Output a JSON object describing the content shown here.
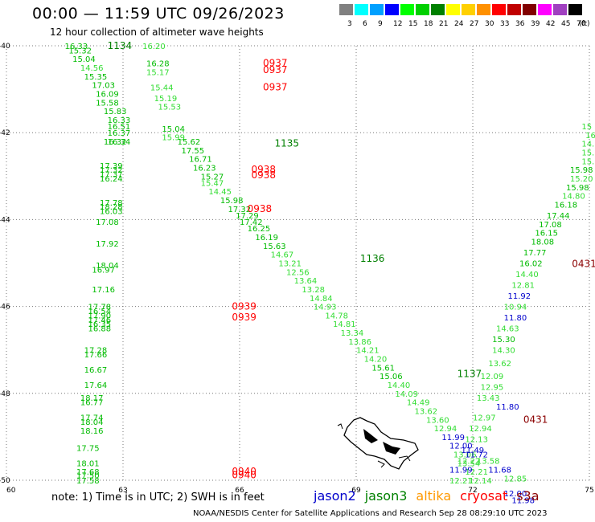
{
  "header": {
    "title": "00:00 — 11:59 UTC 09/26/2023",
    "subtitle": "12 hour collection of altimeter wave heights"
  },
  "legend": {
    "unit": "(ft)",
    "bins": [
      {
        "label": "3",
        "color": "#808080"
      },
      {
        "label": "6",
        "color": "#00ffff"
      },
      {
        "label": "9",
        "color": "#00a0ff"
      },
      {
        "label": "12",
        "color": "#0000ff"
      },
      {
        "label": "15",
        "color": "#00ff00"
      },
      {
        "label": "18",
        "color": "#00d000"
      },
      {
        "label": "21",
        "color": "#008000"
      },
      {
        "label": "24",
        "color": "#ffff00"
      },
      {
        "label": "27",
        "color": "#ffd000"
      },
      {
        "label": "30",
        "color": "#ff9000"
      },
      {
        "label": "33",
        "color": "#ff0000"
      },
      {
        "label": "36",
        "color": "#c00000"
      },
      {
        "label": "39",
        "color": "#800000"
      },
      {
        "label": "42",
        "color": "#ff00ff"
      },
      {
        "label": "45",
        "color": "#a040c0"
      },
      {
        "label": "70",
        "color": "#000000"
      }
    ]
  },
  "axes": {
    "lat_labels": [
      {
        "label": "-40",
        "lat": -40
      },
      {
        "label": "-42",
        "lat": -42
      },
      {
        "label": "-44",
        "lat": -44
      },
      {
        "label": "-46",
        "lat": -46
      },
      {
        "label": "-48",
        "lat": -48
      },
      {
        "label": "-50",
        "lat": -50
      }
    ],
    "lon_labels": [
      {
        "label": "60",
        "lon": 60
      },
      {
        "label": "63",
        "lon": 63
      },
      {
        "label": "66",
        "lon": 66
      },
      {
        "label": "69",
        "lon": 69
      },
      {
        "label": "72",
        "lon": 72
      },
      {
        "label": "75",
        "lon": 75
      }
    ]
  },
  "colors": {
    "light_green": "#33dd33",
    "green": "#00bb00",
    "dark_green": "#008000",
    "blue": "#0000cc",
    "red": "#ff0000",
    "dark_red": "#8b0000"
  },
  "times": [
    {
      "label": "1134",
      "lon": 62.6,
      "lat": -40.0,
      "color": "dark_green"
    },
    {
      "label": "0937",
      "lon": 66.6,
      "lat": -40.4,
      "color": "red"
    },
    {
      "label": "0937",
      "lon": 66.6,
      "lat": -40.55,
      "color": "red"
    },
    {
      "label": "0937",
      "lon": 66.6,
      "lat": -40.95,
      "color": "red"
    },
    {
      "label": "1135",
      "lon": 66.9,
      "lat": -42.25,
      "color": "dark_green"
    },
    {
      "label": "0938",
      "lon": 66.3,
      "lat": -42.85,
      "color": "red"
    },
    {
      "label": "0938",
      "lon": 66.3,
      "lat": -42.98,
      "color": "red"
    },
    {
      "label": "0938",
      "lon": 66.2,
      "lat": -43.75,
      "color": "red"
    },
    {
      "label": "1136",
      "lon": 69.1,
      "lat": -44.9,
      "color": "dark_green"
    },
    {
      "label": "0939",
      "lon": 65.8,
      "lat": -46.0,
      "color": "red"
    },
    {
      "label": "0939",
      "lon": 65.8,
      "lat": -46.25,
      "color": "red"
    },
    {
      "label": "1137",
      "lon": 71.6,
      "lat": -47.55,
      "color": "dark_green"
    },
    {
      "label": "0431",
      "lon": 73.3,
      "lat": -48.6,
      "color": "dark_red"
    },
    {
      "label": "0431",
      "lon": 74.55,
      "lat": -45.02,
      "color": "dark_red"
    },
    {
      "label": "0940",
      "lon": 65.8,
      "lat": -49.8,
      "color": "red"
    },
    {
      "label": "0940",
      "lon": 65.8,
      "lat": -49.88,
      "color": "red"
    }
  ],
  "tracks": [
    {
      "id": "jason3-track-a",
      "color": "green",
      "points": [
        {
          "lon": 61.5,
          "lat": -40.0,
          "v": "16.33"
        },
        {
          "lon": 61.6,
          "lat": -40.1,
          "v": "15.32"
        },
        {
          "lon": 61.7,
          "lat": -40.3,
          "v": "15.04"
        },
        {
          "lon": 61.9,
          "lat": -40.5,
          "v": "14.56",
          "c": "light_green"
        },
        {
          "lon": 62.0,
          "lat": -40.7,
          "v": "15.35"
        },
        {
          "lon": 62.2,
          "lat": -40.9,
          "v": "17.03"
        },
        {
          "lon": 62.3,
          "lat": -41.1,
          "v": "16.09"
        },
        {
          "lon": 62.3,
          "lat": -41.3,
          "v": "15.58"
        },
        {
          "lon": 62.5,
          "lat": -41.5,
          "v": "15.83"
        },
        {
          "lon": 62.6,
          "lat": -41.7,
          "v": "16.33"
        },
        {
          "lon": 62.6,
          "lat": -41.85,
          "v": "16.51"
        },
        {
          "lon": 62.6,
          "lat": -42.0,
          "v": "16.37"
        },
        {
          "lon": 62.6,
          "lat": -42.2,
          "v": "16.34"
        },
        {
          "lon": 62.5,
          "lat": -42.2,
          "v": "16.32"
        }
      ]
    },
    {
      "id": "altika-track",
      "color": "light_green",
      "points": [
        {
          "lon": 63.5,
          "lat": -40.0,
          "v": "16.20"
        },
        {
          "lon": 63.6,
          "lat": -40.4,
          "v": "16.28",
          "c": "green"
        },
        {
          "lon": 63.6,
          "lat": -40.6,
          "v": "15.17"
        },
        {
          "lon": 63.7,
          "lat": -40.95,
          "v": "15.44"
        },
        {
          "lon": 63.8,
          "lat": -41.2,
          "v": "15.19"
        },
        {
          "lon": 63.9,
          "lat": -41.4,
          "v": "15.53"
        },
        {
          "lon": 64.0,
          "lat": -41.9,
          "v": "15.04",
          "c": "green"
        },
        {
          "lon": 64.0,
          "lat": -42.1,
          "v": "15.99"
        },
        {
          "lon": 64.4,
          "lat": -42.2,
          "v": "15.62",
          "c": "green"
        },
        {
          "lon": 64.5,
          "lat": -42.4,
          "v": "17.55",
          "c": "green"
        },
        {
          "lon": 64.7,
          "lat": -42.6,
          "v": "16.71",
          "c": "green"
        },
        {
          "lon": 64.8,
          "lat": -42.8,
          "v": "16.23",
          "c": "green"
        },
        {
          "lon": 65.0,
          "lat": -43.0,
          "v": "15.27",
          "c": "green"
        },
        {
          "lon": 65.0,
          "lat": -43.15,
          "v": "15.47"
        },
        {
          "lon": 65.2,
          "lat": -43.35,
          "v": "14.45"
        },
        {
          "lon": 65.5,
          "lat": -43.55,
          "v": "15.98",
          "c": "green"
        },
        {
          "lon": 65.7,
          "lat": -43.75,
          "v": "17.32",
          "c": "green"
        },
        {
          "lon": 65.9,
          "lat": -43.9,
          "v": "17.29",
          "c": "green"
        },
        {
          "lon": 66.0,
          "lat": -44.05,
          "v": "17.42",
          "c": "green"
        },
        {
          "lon": 66.2,
          "lat": -44.2,
          "v": "16.25",
          "c": "green"
        },
        {
          "lon": 66.4,
          "lat": -44.4,
          "v": "16.19",
          "c": "green"
        },
        {
          "lon": 66.6,
          "lat": -44.6,
          "v": "15.63",
          "c": "green"
        },
        {
          "lon": 66.8,
          "lat": -44.8,
          "v": "14.67"
        },
        {
          "lon": 67.0,
          "lat": -45.0,
          "v": "13.21"
        },
        {
          "lon": 67.2,
          "lat": -45.2,
          "v": "12.56"
        },
        {
          "lon": 67.4,
          "lat": -45.4,
          "v": "13.64"
        },
        {
          "lon": 67.6,
          "lat": -45.6,
          "v": "13.28"
        },
        {
          "lon": 67.8,
          "lat": -45.8,
          "v": "14.84"
        },
        {
          "lon": 67.9,
          "lat": -46.0,
          "v": "14.93"
        },
        {
          "lon": 68.2,
          "lat": -46.2,
          "v": "14.78"
        },
        {
          "lon": 68.4,
          "lat": -46.4,
          "v": "14.81"
        },
        {
          "lon": 68.6,
          "lat": -46.6,
          "v": "13.34"
        },
        {
          "lon": 68.8,
          "lat": -46.8,
          "v": "13.86"
        },
        {
          "lon": 69.0,
          "lat": -47.0,
          "v": "14.21"
        },
        {
          "lon": 69.2,
          "lat": -47.2,
          "v": "14.20"
        },
        {
          "lon": 69.4,
          "lat": -47.4,
          "v": "15.61",
          "c": "green"
        },
        {
          "lon": 69.6,
          "lat": -47.6,
          "v": "15.06",
          "c": "green"
        },
        {
          "lon": 69.8,
          "lat": -47.8,
          "v": "14.40"
        },
        {
          "lon": 70.0,
          "lat": -48.0,
          "v": "14.09"
        },
        {
          "lon": 70.3,
          "lat": -48.2,
          "v": "14.49"
        },
        {
          "lon": 70.5,
          "lat": -48.4,
          "v": "13.62"
        },
        {
          "lon": 70.8,
          "lat": -48.6,
          "v": "13.60"
        },
        {
          "lon": 71.0,
          "lat": -48.8,
          "v": "12.94"
        },
        {
          "lon": 71.2,
          "lat": -49.0,
          "v": "11.99",
          "c": "blue"
        },
        {
          "lon": 71.4,
          "lat": -49.2,
          "v": "12.00",
          "c": "blue"
        },
        {
          "lon": 71.5,
          "lat": -49.4,
          "v": "13.06"
        },
        {
          "lon": 71.6,
          "lat": -49.6,
          "v": "13.54"
        },
        {
          "lon": 71.8,
          "lat": -49.8,
          "v": "12.21"
        },
        {
          "lon": 71.9,
          "lat": -50.0,
          "v": "12.14"
        }
      ]
    },
    {
      "id": "jason3-track-b",
      "color": "green",
      "points": [
        {
          "lon": 62.4,
          "lat": -42.75,
          "v": "17.39"
        },
        {
          "lon": 62.4,
          "lat": -42.85,
          "v": "17.32"
        },
        {
          "lon": 62.4,
          "lat": -42.95,
          "v": "17.37"
        },
        {
          "lon": 62.4,
          "lat": -43.05,
          "v": "16.24"
        },
        {
          "lon": 62.4,
          "lat": -43.6,
          "v": "17.78"
        },
        {
          "lon": 62.4,
          "lat": -43.7,
          "v": "18.28"
        },
        {
          "lon": 62.4,
          "lat": -43.8,
          "v": "16.03"
        },
        {
          "lon": 62.3,
          "lat": -44.05,
          "v": "17.08"
        },
        {
          "lon": 62.3,
          "lat": -44.55,
          "v": "17.92"
        },
        {
          "lon": 62.3,
          "lat": -45.05,
          "v": "18.04"
        },
        {
          "lon": 62.2,
          "lat": -45.15,
          "v": "16.97"
        },
        {
          "lon": 62.2,
          "lat": -45.6,
          "v": "17.16"
        },
        {
          "lon": 62.1,
          "lat": -46.0,
          "v": "17.78"
        },
        {
          "lon": 62.1,
          "lat": -46.1,
          "v": "16.54"
        },
        {
          "lon": 62.1,
          "lat": -46.2,
          "v": "17.90"
        },
        {
          "lon": 62.1,
          "lat": -46.3,
          "v": "17.46"
        },
        {
          "lon": 62.1,
          "lat": -46.4,
          "v": "16.35"
        },
        {
          "lon": 62.1,
          "lat": -46.5,
          "v": "16.88"
        },
        {
          "lon": 62.0,
          "lat": -47.0,
          "v": "17.28"
        },
        {
          "lon": 62.0,
          "lat": -47.1,
          "v": "17.66"
        },
        {
          "lon": 62.0,
          "lat": -47.45,
          "v": "16.67"
        },
        {
          "lon": 62.0,
          "lat": -47.8,
          "v": "17.64"
        },
        {
          "lon": 61.9,
          "lat": -48.1,
          "v": "18.17"
        },
        {
          "lon": 61.9,
          "lat": -48.2,
          "v": "16.77"
        },
        {
          "lon": 61.9,
          "lat": -48.55,
          "v": "17.74"
        },
        {
          "lon": 61.9,
          "lat": -48.65,
          "v": "18.04"
        },
        {
          "lon": 61.9,
          "lat": -48.85,
          "v": "18.16"
        },
        {
          "lon": 61.8,
          "lat": -49.25,
          "v": "17.75"
        },
        {
          "lon": 61.8,
          "lat": -49.6,
          "v": "18.01"
        },
        {
          "lon": 61.8,
          "lat": -49.8,
          "v": "17.68"
        },
        {
          "lon": 61.8,
          "lat": -49.88,
          "v": "17.50"
        },
        {
          "lon": 61.8,
          "lat": -50.0,
          "v": "17.58"
        }
      ]
    },
    {
      "id": "cryosat-track",
      "color": "light_green",
      "points": [
        {
          "lon": 74.8,
          "lat": -41.85,
          "v": "15"
        },
        {
          "lon": 74.9,
          "lat": -42.05,
          "v": "16"
        },
        {
          "lon": 74.8,
          "lat": -42.25,
          "v": "14."
        },
        {
          "lon": 74.8,
          "lat": -42.45,
          "v": "15.7"
        },
        {
          "lon": 74.8,
          "lat": -42.65,
          "v": "15.5"
        },
        {
          "lon": 74.5,
          "lat": -42.85,
          "v": "15.98",
          "c": "green"
        },
        {
          "lon": 74.5,
          "lat": -43.05,
          "v": "15.20"
        },
        {
          "lon": 74.4,
          "lat": -43.25,
          "v": "15.98",
          "c": "green"
        },
        {
          "lon": 74.3,
          "lat": -43.45,
          "v": "14.80"
        },
        {
          "lon": 74.1,
          "lat": -43.65,
          "v": "16.18",
          "c": "green"
        },
        {
          "lon": 73.9,
          "lat": -43.9,
          "v": "17.44",
          "c": "green"
        },
        {
          "lon": 73.7,
          "lat": -44.1,
          "v": "17.08",
          "c": "green"
        },
        {
          "lon": 73.6,
          "lat": -44.3,
          "v": "16.15",
          "c": "green"
        },
        {
          "lon": 73.5,
          "lat": -44.5,
          "v": "18.08",
          "c": "green"
        },
        {
          "lon": 73.3,
          "lat": -44.75,
          "v": "17.77",
          "c": "green"
        },
        {
          "lon": 73.2,
          "lat": -45.0,
          "v": "16.02",
          "c": "green"
        },
        {
          "lon": 73.1,
          "lat": -45.25,
          "v": "14.40"
        },
        {
          "lon": 73.0,
          "lat": -45.5,
          "v": "12.81"
        },
        {
          "lon": 72.9,
          "lat": -45.75,
          "v": "11.92",
          "c": "blue"
        },
        {
          "lon": 72.8,
          "lat": -46.0,
          "v": "10.94"
        },
        {
          "lon": 72.8,
          "lat": -46.25,
          "v": "11.80",
          "c": "blue"
        },
        {
          "lon": 72.6,
          "lat": -46.5,
          "v": "14.63"
        },
        {
          "lon": 72.5,
          "lat": -46.75,
          "v": "15.30",
          "c": "green"
        },
        {
          "lon": 72.5,
          "lat": -47.0,
          "v": "14.30"
        },
        {
          "lon": 72.4,
          "lat": -47.3,
          "v": "13.62"
        },
        {
          "lon": 72.2,
          "lat": -47.6,
          "v": "12.09"
        },
        {
          "lon": 72.2,
          "lat": -47.85,
          "v": "12.95"
        },
        {
          "lon": 72.1,
          "lat": -48.1,
          "v": "13.43"
        },
        {
          "lon": 72.6,
          "lat": -48.3,
          "v": "11.80",
          "c": "blue"
        },
        {
          "lon": 72.0,
          "lat": -48.55,
          "v": "12.97"
        },
        {
          "lon": 71.9,
          "lat": -48.8,
          "v": "12.94"
        },
        {
          "lon": 71.8,
          "lat": -49.05,
          "v": "12.13"
        },
        {
          "lon": 71.7,
          "lat": -49.3,
          "v": "11.49",
          "c": "blue"
        },
        {
          "lon": 71.8,
          "lat": -49.4,
          "v": "11.72",
          "c": "blue"
        },
        {
          "lon": 71.6,
          "lat": -49.55,
          "v": "12.22"
        },
        {
          "lon": 72.1,
          "lat": -49.55,
          "v": "13.58"
        },
        {
          "lon": 72.4,
          "lat": -49.75,
          "v": "11.68",
          "c": "blue"
        },
        {
          "lon": 72.8,
          "lat": -49.95,
          "v": "12.85"
        },
        {
          "lon": 72.8,
          "lat": -50.3,
          "v": "12.00",
          "c": "blue"
        },
        {
          "lon": 73.0,
          "lat": -50.45,
          "v": "11.98",
          "c": "blue"
        },
        {
          "lon": 71.4,
          "lat": -49.75,
          "v": "11.99",
          "c": "blue"
        },
        {
          "lon": 71.4,
          "lat": -50.0,
          "v": "12.21"
        }
      ]
    }
  ],
  "note": "note:  1) Time is in UTC;  2) SWH is in feet",
  "satellites": [
    {
      "name": "jason2",
      "color": "#0000cc"
    },
    {
      "name": "jason3",
      "color": "#008000"
    },
    {
      "name": "altika",
      "color": "#ff9900"
    },
    {
      "name": "cryosat",
      "color": "#ff0000"
    },
    {
      "name": "s3a",
      "color": "#8b0000"
    }
  ],
  "footer": "NOAA/NESDIS Center for Satellite Applications and Research    Sep 28 08:29:10 UTC 2023"
}
